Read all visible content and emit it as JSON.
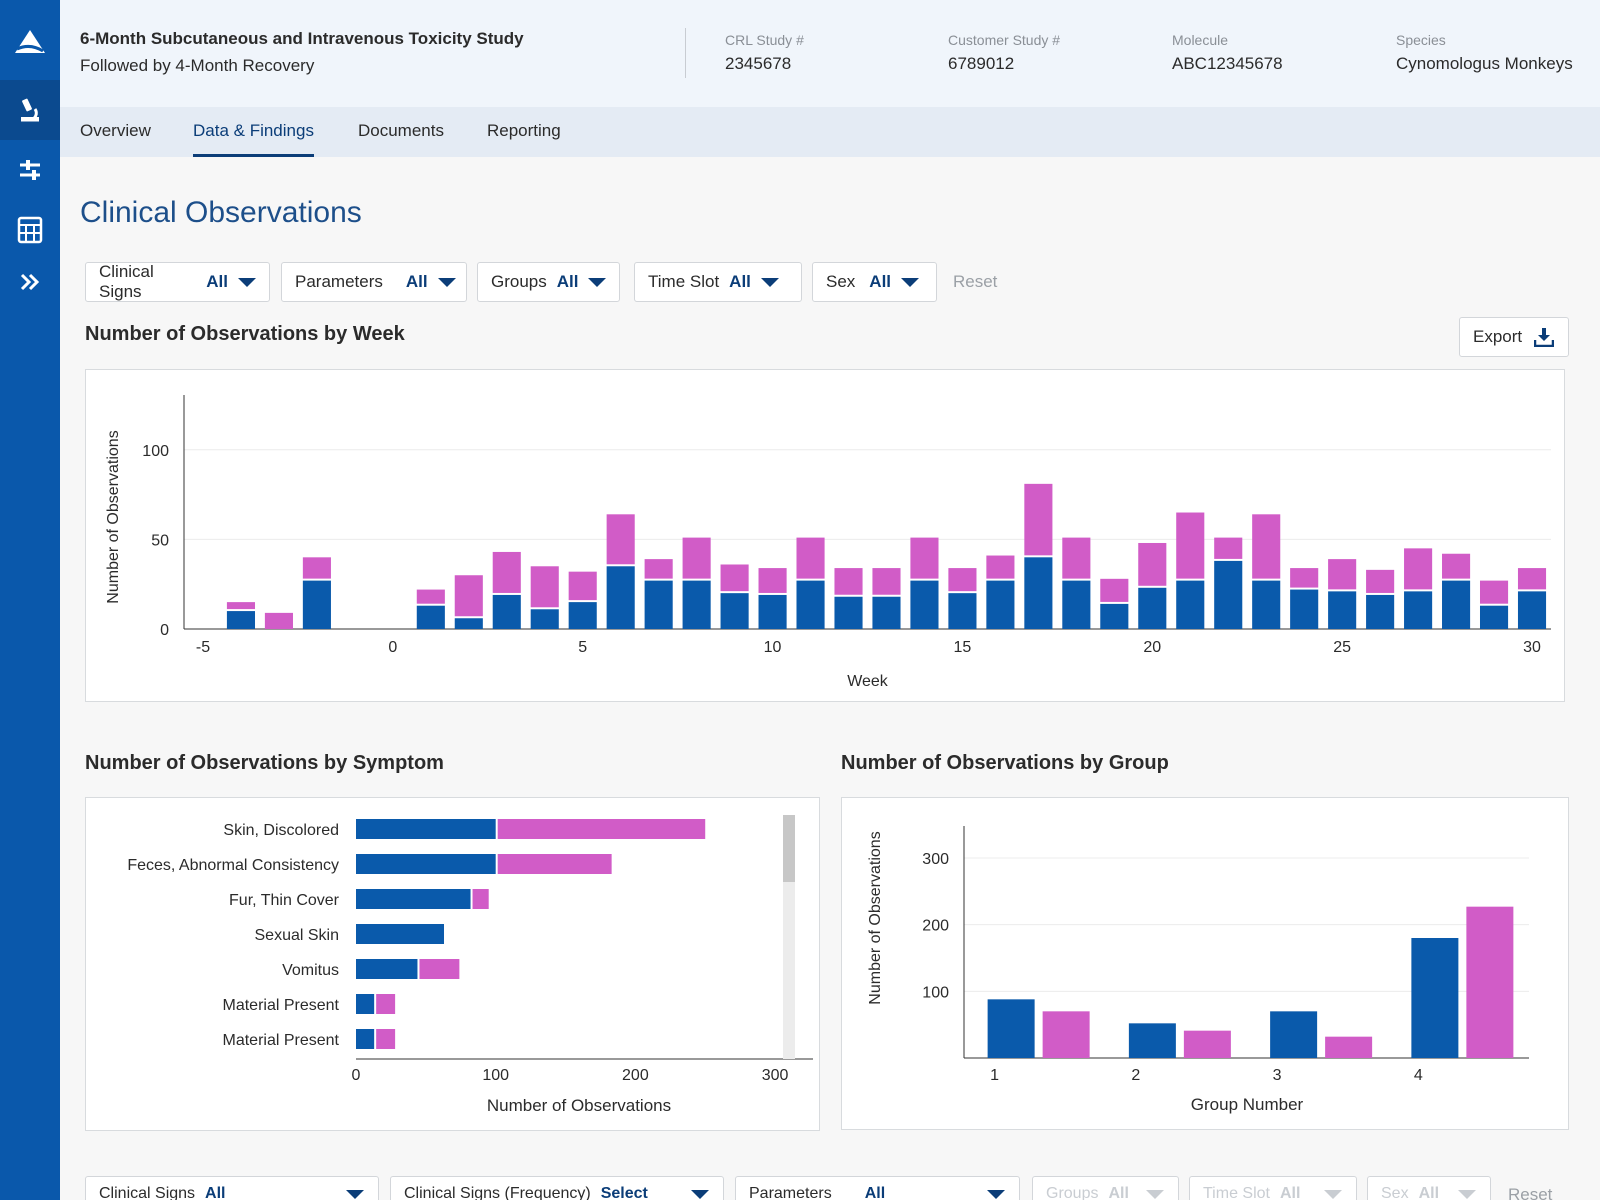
{
  "header": {
    "study_title": "6-Month Subcutaneous and Intravenous Toxicity Study",
    "study_subtitle": "Followed by 4-Month Recovery",
    "meta": [
      {
        "label": "CRL Study #",
        "value": "2345678"
      },
      {
        "label": "Customer Study #",
        "value": "6789012"
      },
      {
        "label": "Molecule",
        "value": "ABC12345678"
      },
      {
        "label": "Species",
        "value": "Cynomologus Monkeys"
      }
    ]
  },
  "sidebar": {
    "items": [
      {
        "icon": "logo-icon"
      },
      {
        "icon": "microscope-icon",
        "active": true
      },
      {
        "icon": "sliders-icon"
      },
      {
        "icon": "calculator-icon"
      },
      {
        "icon": "expand-chevrons-icon"
      }
    ]
  },
  "tabs": [
    {
      "label": "Overview",
      "active": false
    },
    {
      "label": "Data & Findings",
      "active": true
    },
    {
      "label": "Documents",
      "active": false
    },
    {
      "label": "Reporting",
      "active": false
    }
  ],
  "page_title": "Clinical Observations",
  "filters": [
    {
      "label": "Clinical Signs",
      "value": "All"
    },
    {
      "label": "Parameters",
      "value": "All"
    },
    {
      "label": "Groups",
      "value": "All"
    },
    {
      "label": "Time Slot",
      "value": "All"
    },
    {
      "label": "Sex",
      "value": "All"
    }
  ],
  "reset_label": "Reset",
  "export_label": "Export",
  "colors": {
    "male": "#0a5aab",
    "female": "#d15cc7",
    "accent": "#0b3d78",
    "sidebar": "#0a58ab"
  },
  "chart_data": [
    {
      "type": "bar",
      "stacked": true,
      "title": "Number of Observations by Week",
      "xlabel": "Week",
      "ylabel": "Number of Observations",
      "xlim": [
        -5.5,
        30.5
      ],
      "ylim": [
        0,
        125
      ],
      "xticks": [
        -5,
        0,
        5,
        10,
        15,
        20,
        25,
        30
      ],
      "yticks": [
        0,
        50,
        100
      ],
      "grid": true,
      "x": [
        -4,
        -3,
        -2,
        1,
        2,
        3,
        4,
        5,
        6,
        7,
        8,
        9,
        10,
        11,
        12,
        13,
        14,
        15,
        16,
        17,
        18,
        19,
        20,
        21,
        22,
        23,
        24,
        25,
        26,
        27,
        28,
        29,
        30
      ],
      "series": [
        {
          "values": [
            10,
            0,
            27,
            13,
            6,
            19,
            11,
            15,
            35,
            27,
            27,
            20,
            19,
            27,
            18,
            18,
            27,
            20,
            27,
            40,
            27,
            14,
            23,
            27,
            38,
            27,
            22,
            21,
            19,
            21,
            27,
            13,
            21
          ]
        },
        {
          "values": [
            5,
            9,
            13,
            9,
            24,
            24,
            24,
            17,
            29,
            12,
            24,
            16,
            15,
            24,
            16,
            16,
            24,
            14,
            14,
            41,
            24,
            14,
            25,
            38,
            13,
            37,
            12,
            18,
            14,
            24,
            15,
            14,
            13
          ]
        }
      ]
    },
    {
      "type": "bar",
      "orientation": "horizontal",
      "stacked": true,
      "title": "Number of Observations by Symptom",
      "xlabel": "Number of Observations",
      "xlim": [
        0,
        320
      ],
      "xticks": [
        0,
        100,
        200,
        300
      ],
      "categories": [
        "Skin, Discolored",
        "Feces, Abnormal Consistency",
        "Fur, Thin Cover",
        "Sexual Skin",
        "Vomitus",
        "Material Present",
        "Material Present"
      ],
      "series": [
        {
          "values": [
            100,
            100,
            82,
            63,
            44,
            13,
            13
          ]
        },
        {
          "values": [
            150,
            83,
            13,
            0,
            30,
            15,
            15
          ]
        }
      ]
    },
    {
      "type": "bar",
      "title": "Number of Observations by Group",
      "xlabel": "Group Number",
      "ylabel": "Number of Observations",
      "ylim": [
        0,
        360
      ],
      "yticks": [
        100,
        200,
        300
      ],
      "categories": [
        "1",
        "2",
        "3",
        "4"
      ],
      "series": [
        {
          "values": [
            88,
            52,
            70,
            180
          ]
        },
        {
          "values": [
            70,
            41,
            32,
            227
          ]
        }
      ]
    }
  ],
  "bottom_filters": [
    {
      "label": "Clinical Signs",
      "value": "All",
      "disabled": false
    },
    {
      "label": "Clinical Signs (Frequency)",
      "value": "Select",
      "disabled": false
    },
    {
      "label": "Parameters",
      "value": "All",
      "disabled": false
    },
    {
      "label": "Groups",
      "value": "All",
      "disabled": true
    },
    {
      "label": "Time Slot",
      "value": "All",
      "disabled": true
    },
    {
      "label": "Sex",
      "value": "All",
      "disabled": true
    }
  ]
}
